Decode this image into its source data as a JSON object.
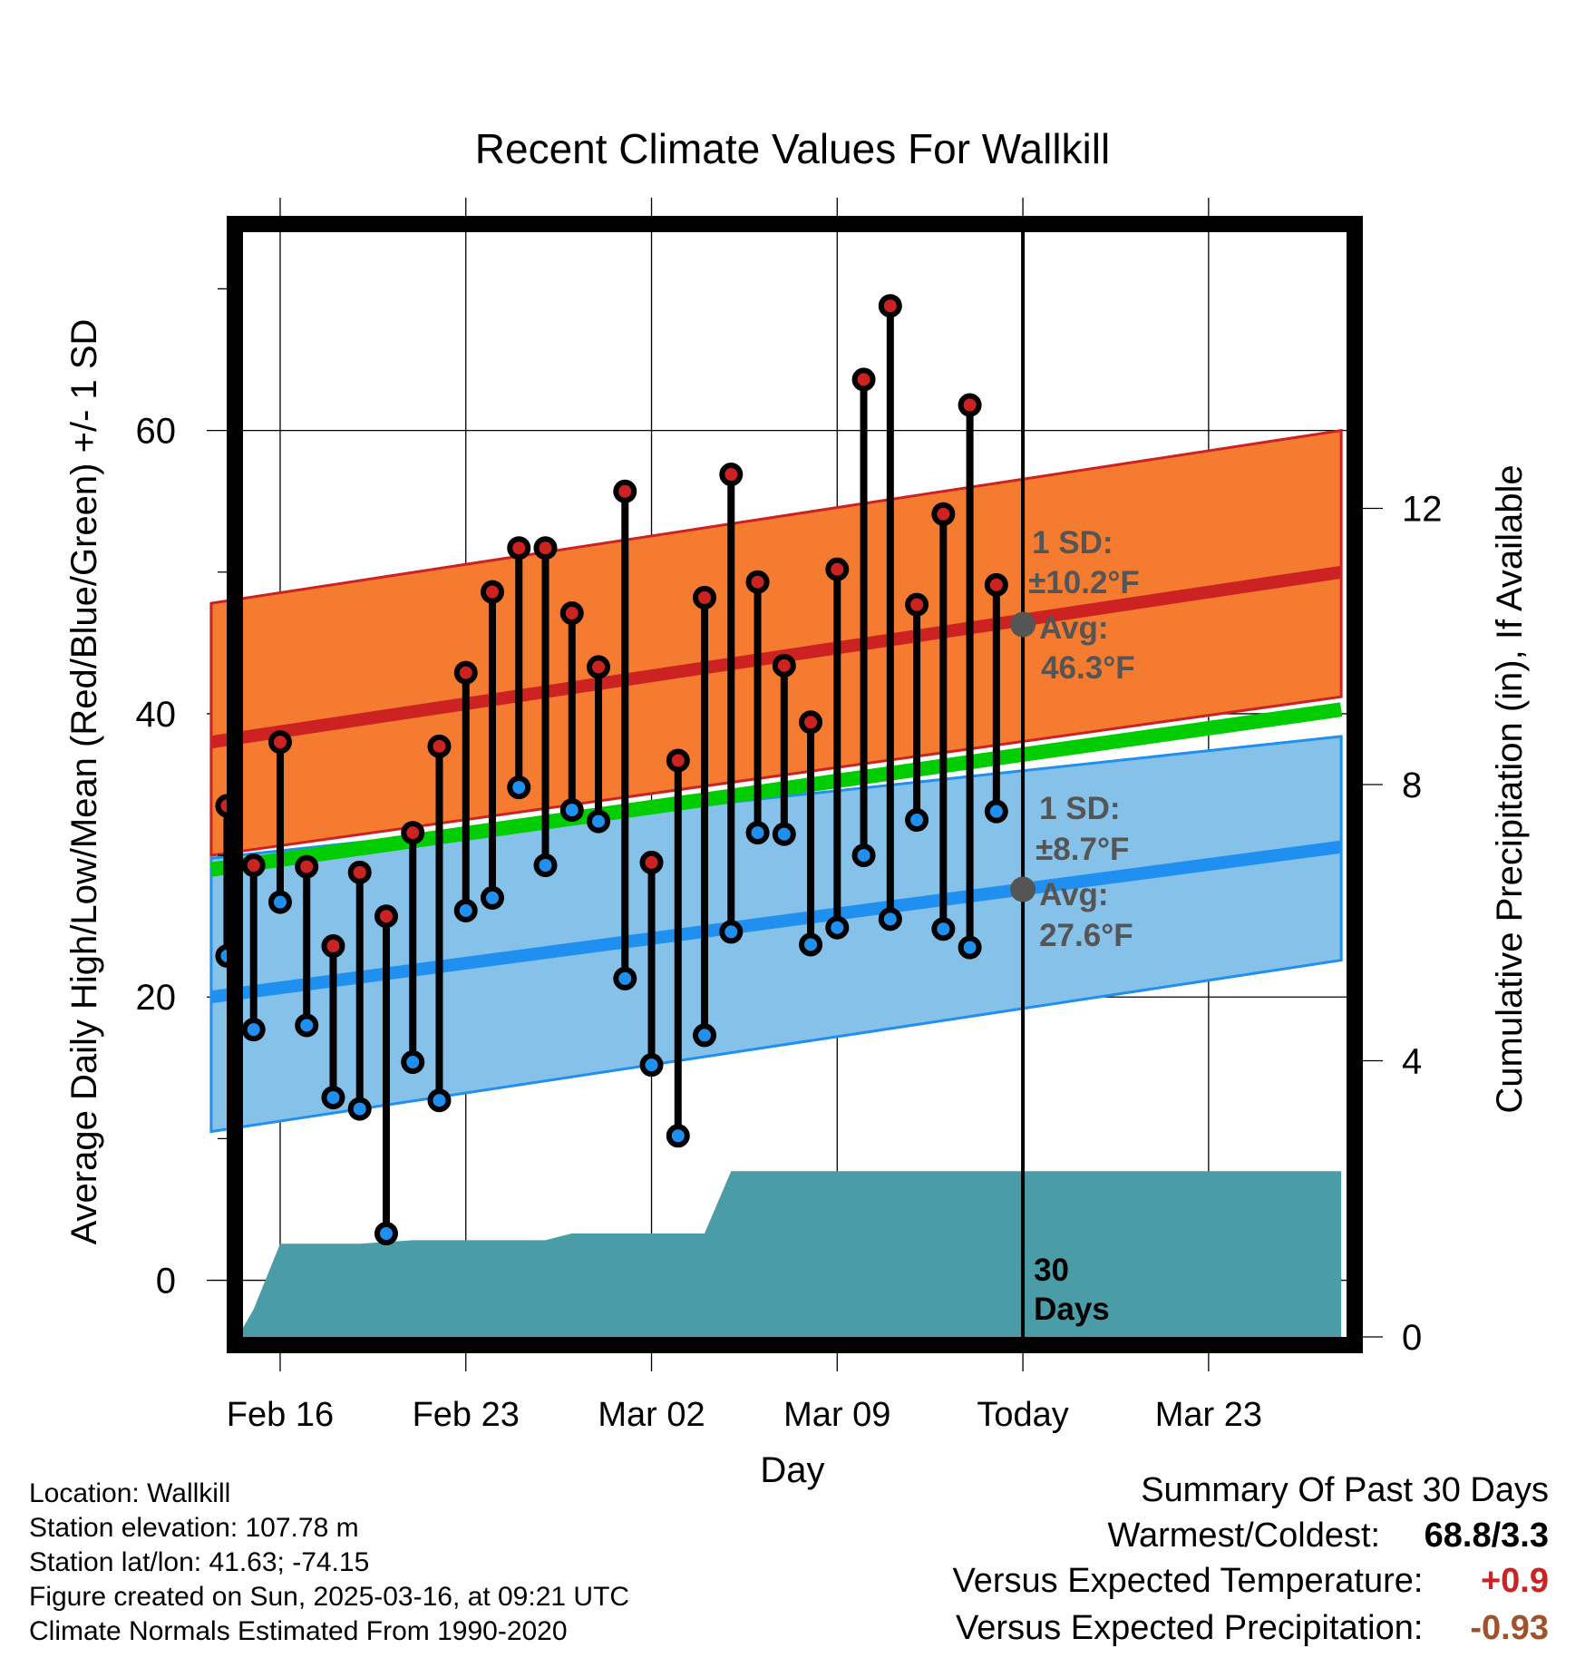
{
  "title": "Recent Climate Values For Wallkill",
  "xlabel": "Day",
  "ylabel_left": "Average Daily High/Low/Mean (Red/Blue/Green) +/- 1 SD",
  "ylabel_right": "Cumulative Precipitation (in), If Available",
  "info": {
    "location": "Location: Wallkill",
    "elevation": "Station elevation: 107.78 m",
    "latlon": "Station lat/lon: 41.63; -74.15",
    "created": "Figure created on Sun, 2025-03-16, at 09:21 UTC",
    "normals": "Climate Normals Estimated From 1990-2020"
  },
  "summary": {
    "title": "Summary Of Past 30 Days",
    "warm_cold_label": "Warmest/Coldest:",
    "warm_cold_value": "68.8/3.3",
    "temp_label": "Versus Expected Temperature:",
    "temp_value": "+0.9",
    "precip_label": "Versus Expected Precipitation:",
    "precip_value": "-0.93"
  },
  "annotations": {
    "high_sd_label": "1 SD:",
    "high_sd_value": "±10.2°F",
    "high_avg_label": "Avg:",
    "high_avg_value": "46.3°F",
    "low_sd_label": "1 SD:",
    "low_sd_value": "±8.7°F",
    "low_avg_label": "Avg:",
    "low_avg_value": "27.6°F",
    "days_number": "30",
    "days_word": "Days"
  },
  "colors": {
    "high": "#cc2222",
    "high_band": "#f47b30",
    "low": "#2090f0",
    "low_band": "#85c1e8",
    "mean": "#00cc00",
    "precip": "#4a9da6",
    "annot": "#555555",
    "temp_value": "#cc2222",
    "precip_value": "#a0522d"
  },
  "chart_data": {
    "type": "line",
    "x_axis": {
      "min": -1.4,
      "max": 40.2,
      "tick_labels": [
        "Feb 16",
        "Feb 23",
        "Mar 02",
        "Mar 09",
        "Today",
        "Mar 23"
      ],
      "tick_positions": [
        0,
        7,
        14,
        21,
        28,
        35
      ]
    },
    "y_axis_left": {
      "min": -4,
      "max": 74,
      "ticks": [
        0,
        20,
        40,
        60
      ],
      "minor_ticks": [
        10,
        30,
        50,
        70
      ]
    },
    "y_axis_right": {
      "min": 0,
      "max": 16,
      "ticks": [
        0,
        4,
        8,
        12
      ]
    },
    "today_index": 28,
    "observations": {
      "days": [
        -2,
        -1,
        0,
        1,
        2,
        3,
        4,
        5,
        6,
        7,
        8,
        9,
        10,
        11,
        12,
        13,
        14,
        15,
        16,
        17,
        18,
        19,
        20,
        21,
        22,
        23,
        24,
        25,
        26,
        27
      ],
      "high": [
        33.5,
        29.3,
        38.0,
        29.2,
        23.6,
        28.8,
        25.7,
        31.6,
        37.7,
        42.9,
        48.6,
        51.7,
        51.7,
        47.1,
        43.3,
        55.7,
        29.5,
        36.7,
        48.2,
        56.9,
        49.3,
        43.4,
        39.4,
        50.2,
        63.6,
        68.8,
        47.7,
        54.1,
        61.8,
        49.1
      ],
      "low": [
        22.9,
        17.7,
        26.7,
        18.0,
        12.9,
        12.1,
        3.3,
        15.4,
        12.7,
        26.1,
        27.0,
        34.8,
        29.3,
        33.2,
        32.4,
        21.3,
        15.2,
        10.2,
        17.3,
        24.6,
        31.6,
        31.5,
        23.7,
        24.9,
        30.0,
        25.5,
        32.5,
        24.8,
        23.5,
        33.1
      ]
    },
    "normals": {
      "days": [
        -2.6,
        40
      ],
      "high_mean": [
        38.0,
        50.0
      ],
      "high_upper": [
        47.8,
        60.0
      ],
      "high_lower": [
        30.0,
        41.2
      ],
      "low_mean": [
        20.0,
        30.6
      ],
      "low_upper": [
        29.8,
        38.4
      ],
      "low_lower": [
        10.5,
        22.6
      ],
      "mean": [
        29.0,
        40.3
      ]
    },
    "precipitation": {
      "days": [
        -2.6,
        -1.6,
        -1.0,
        0,
        3,
        5,
        10,
        11,
        14,
        16,
        17,
        40
      ],
      "values": [
        0,
        0,
        0.4,
        1.35,
        1.35,
        1.4,
        1.4,
        1.5,
        1.5,
        1.5,
        2.4,
        2.4
      ]
    },
    "legend": "none"
  }
}
